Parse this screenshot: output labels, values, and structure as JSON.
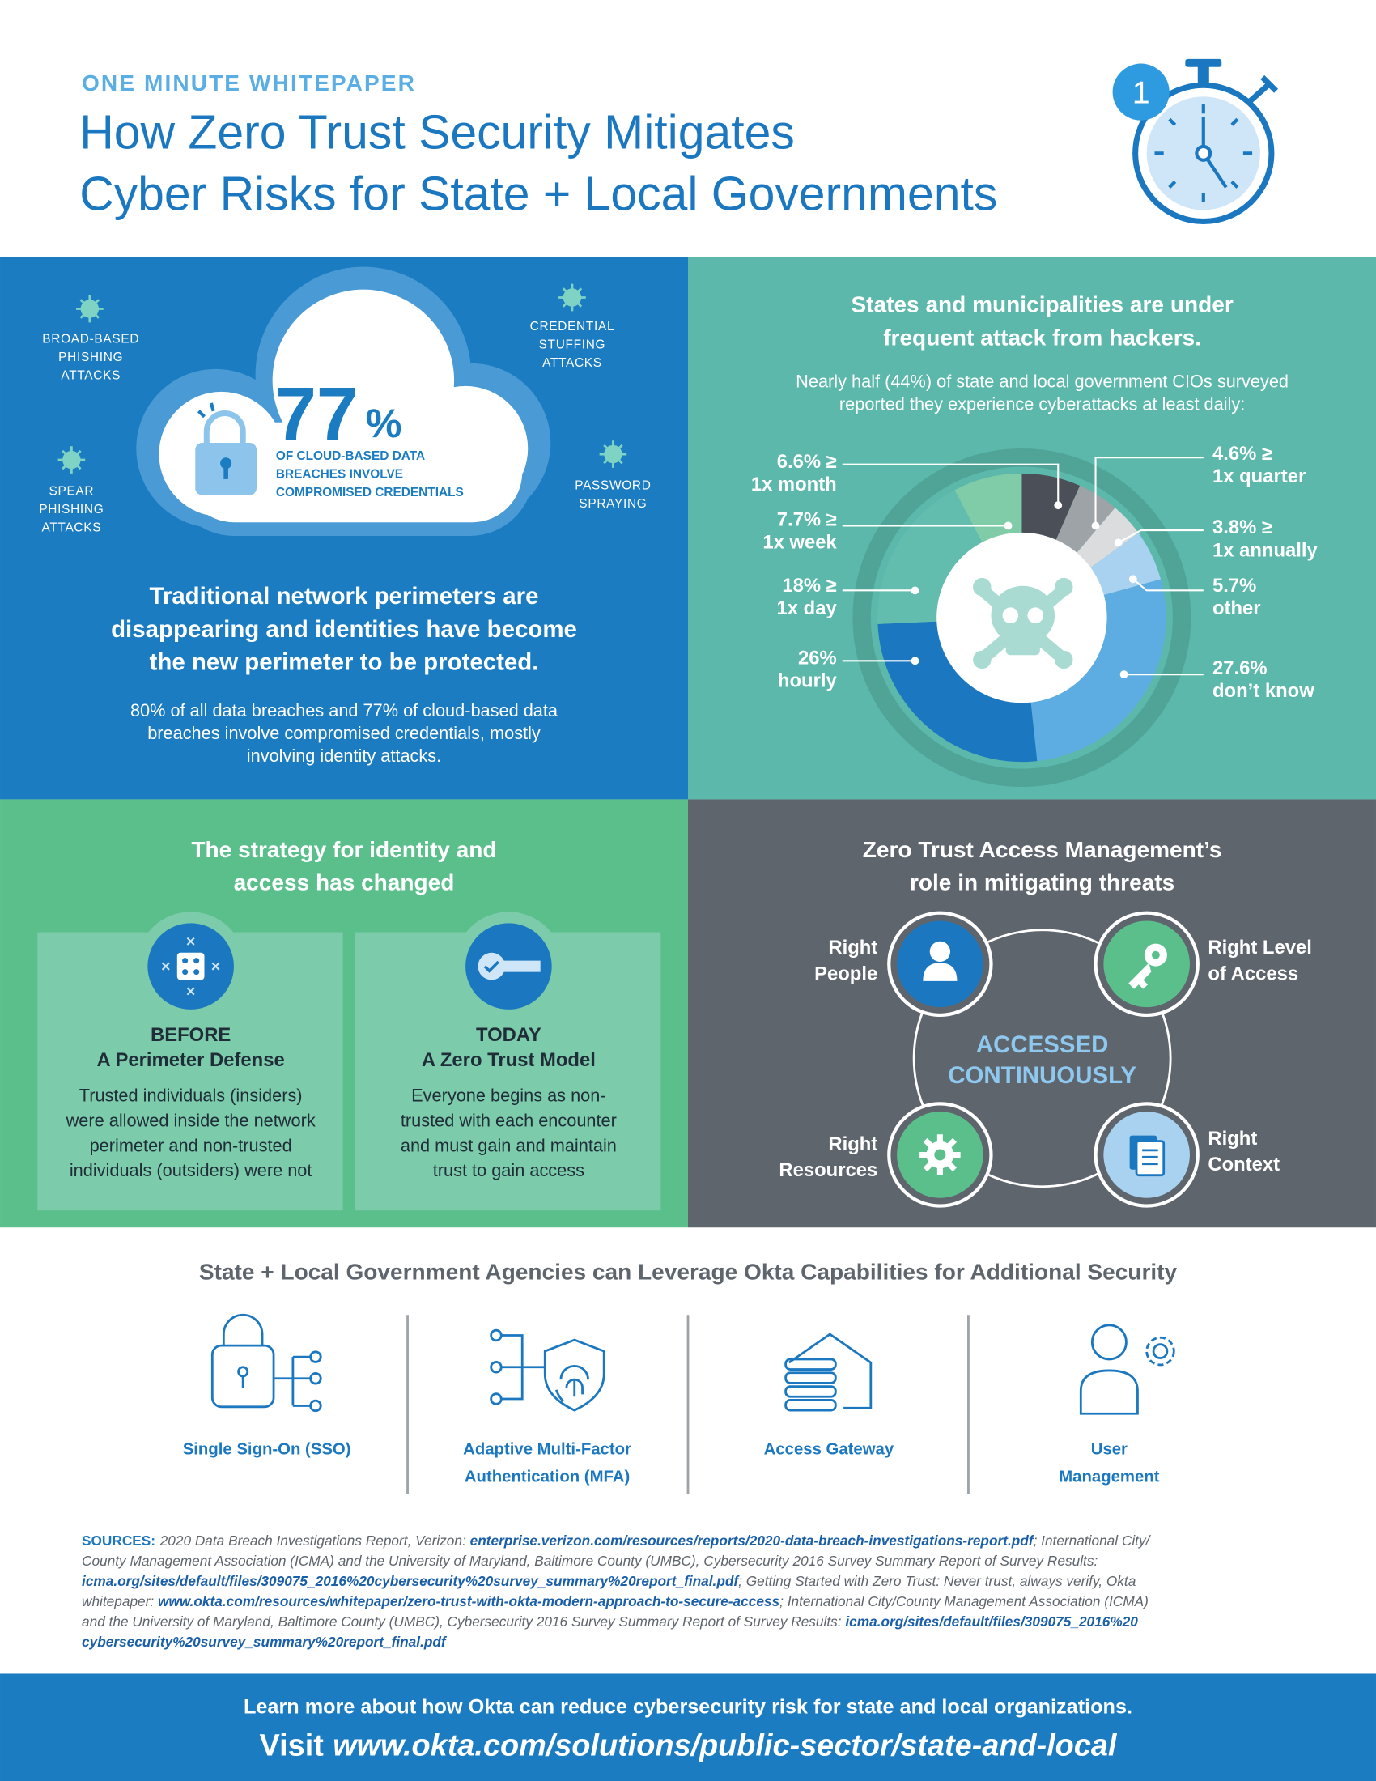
{
  "header": {
    "kicker": "ONE MINUTE WHITEPAPER",
    "title_lines": [
      "How Zero Trust Security Mitigates",
      "Cyber Risks for State + Local Governments"
    ],
    "badge": "1"
  },
  "cloud_panel": {
    "threats": [
      {
        "lines": [
          "BROAD-BASED",
          "PHISHING",
          "ATTACKS"
        ]
      },
      {
        "lines": [
          "CREDENTIAL",
          "STUFFING",
          "ATTACKS"
        ]
      },
      {
        "lines": [
          "SPEAR",
          "PHISHING",
          "ATTACKS"
        ]
      },
      {
        "lines": [
          "PASSWORD",
          "SPRAYING"
        ]
      }
    ],
    "stat": "77",
    "stat_unit": "%",
    "stat_lines": [
      "OF CLOUD-BASED DATA",
      "BREACHES INVOLVE",
      "COMPROMISED CREDENTIALS"
    ],
    "heading_lines": [
      "Traditional network perimeters are",
      "disappearing and identities have become",
      "the new perimeter to be protected."
    ],
    "body_lines": [
      "80% of all data breaches and 77% of cloud-based data",
      "breaches involve compromised credentials, mostly",
      "involving identity attacks."
    ]
  },
  "attack_panel": {
    "heading_lines": [
      "States and municipalities are under",
      "frequent attack from hackers."
    ],
    "intro_lines": [
      "Nearly half (44%) of state and local government CIOs surveyed",
      "reported they experience cyberattacks at least daily:"
    ],
    "chart": {
      "type": "pie",
      "slices": [
        {
          "value": 6.6,
          "value_label": "6.6% ≥",
          "label": "1x month",
          "color": "#4b5058"
        },
        {
          "value": 4.6,
          "value_label": "4.6% ≥",
          "label": "1x quarter",
          "color": "#9ea3a8"
        },
        {
          "value": 3.8,
          "value_label": "3.8% ≥",
          "label": "1x annually",
          "color": "#dadcdd"
        },
        {
          "value": 5.7,
          "value_label": "5.7%",
          "label": "other",
          "color": "#a8d2f0"
        },
        {
          "value": 27.6,
          "value_label": "27.6%",
          "label": "don’t know",
          "color": "#5eade2"
        },
        {
          "value": 26,
          "value_label": "26%",
          "label": "hourly",
          "color": "#1b78c0"
        },
        {
          "value": 18,
          "value_label": "18% ≥",
          "label": "1x day",
          "color": "#62bdae"
        },
        {
          "value": 7.7,
          "value_label": "7.7% ≥",
          "label": "1x week",
          "color": "#80cca8"
        }
      ]
    }
  },
  "strategy_panel": {
    "heading_lines": [
      "The strategy for identity and",
      "access has changed"
    ],
    "cards": [
      {
        "title": "BEFORE",
        "subtitle": "A Perimeter Defense",
        "body_lines": [
          "Trusted individuals (insiders)",
          "were allowed inside the network",
          "perimeter and non-trusted",
          "individuals (outsiders) were not"
        ]
      },
      {
        "title": "TODAY",
        "subtitle": "A Zero Trust Model",
        "body_lines": [
          "Everyone begins as non-",
          "trusted with each encounter",
          "and must gain and maintain",
          "trust to gain access"
        ]
      }
    ]
  },
  "zero_trust_panel": {
    "heading_lines": [
      "Zero Trust Access Management’s",
      "role in mitigating threats"
    ],
    "center_lines": [
      "ACCESSED",
      "CONTINUOUSLY"
    ],
    "nodes": [
      {
        "label_lines": [
          "Right",
          "People"
        ]
      },
      {
        "label_lines": [
          "Right Level",
          "of Access"
        ]
      },
      {
        "label_lines": [
          "Right",
          "Resources"
        ]
      },
      {
        "label_lines": [
          "Right",
          "Context"
        ]
      }
    ]
  },
  "capabilities": {
    "heading": "State + Local Government Agencies can Leverage Okta Capabilities for Additional Security",
    "items": [
      {
        "label_lines": [
          "Single Sign-On (SSO)"
        ]
      },
      {
        "label_lines": [
          "Adaptive Multi-Factor",
          "Authentication (MFA)"
        ]
      },
      {
        "label_lines": [
          "Access Gateway"
        ]
      },
      {
        "label_lines": [
          "User",
          "Management"
        ]
      }
    ]
  },
  "sources": {
    "label": "SOURCES:",
    "lines": [
      [
        {
          "text": "2020 Data Breach Investigations Report, Verizon: "
        },
        {
          "text": "enterprise.verizon.com/resources/reports/2020-data-breach-investigations-report.pdf",
          "link": true
        },
        {
          "text": "; International City/"
        }
      ],
      [
        {
          "text": "County Management Association (ICMA) and the University of Maryland, Baltimore County (UMBC), Cybersecurity 2016 Survey Summary Report of Survey Results:"
        }
      ],
      [
        {
          "text": "icma.org/sites/default/files/309075_2016%20cybersecurity%20survey_summary%20report_final.pdf",
          "link": true
        },
        {
          "text": "; Getting Started with Zero Trust: Never trust, always verify, Okta"
        }
      ],
      [
        {
          "text": "whitepaper: "
        },
        {
          "text": "www.okta.com/resources/whitepaper/zero-trust-with-okta-modern-approach-to-secure-access",
          "link": true
        },
        {
          "text": "; International City/County Management Association (ICMA)"
        }
      ],
      [
        {
          "text": "and the University of Maryland, Baltimore County (UMBC), Cybersecurity 2016 Survey Summary Report of Survey Results: "
        },
        {
          "text": "icma.org/sites/default/files/309075_2016%20",
          "link": true
        }
      ],
      [
        {
          "text": "cybersecurity%20survey_summary%20report_final.pdf",
          "link": true
        }
      ]
    ]
  },
  "footer": {
    "line": "Learn more about how Okta can reduce cybersecurity risk for state and local organizations.",
    "visit": "Visit",
    "url": "www.okta.com/solutions/public-sector/state-and-local"
  }
}
